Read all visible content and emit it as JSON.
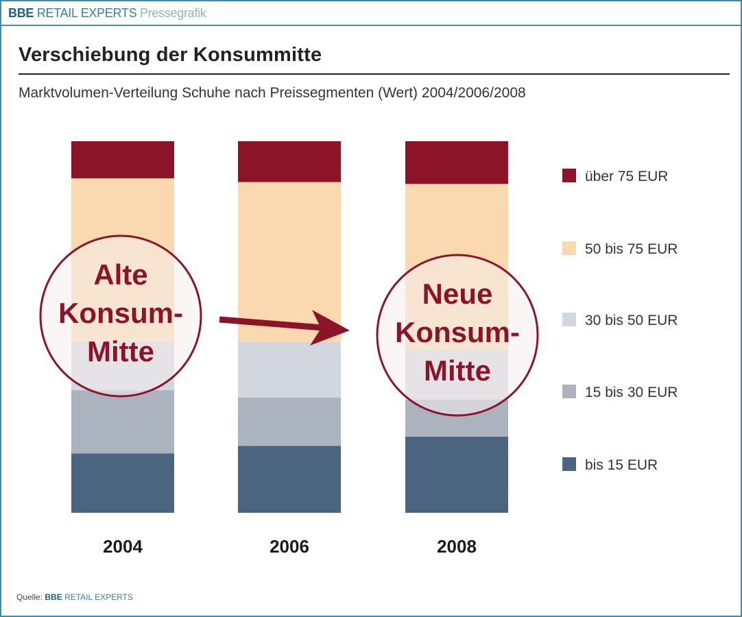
{
  "header": {
    "brand_bold": "BBE",
    "brand_name": "RETAIL EXPERTS",
    "brand_suffix": "Pressegrafik"
  },
  "footer": {
    "source_label": "Quelle:",
    "source_bold": "BBE",
    "source_name": "RETAIL EXPERTS"
  },
  "annotations": {
    "old_center": [
      "Alte",
      "Konsum-",
      "Mitte"
    ],
    "new_center": [
      "Neue",
      "Konsum-",
      "Mitte"
    ],
    "accent_color": "#8b1428"
  },
  "chart_data": {
    "type": "bar",
    "stacked": true,
    "title": "Verschiebung der Konsummitte",
    "subtitle": "Marktvolumen-Verteilung Schuhe nach Preissegmenten (Wert) 2004/2006/2008",
    "xlabel": "",
    "ylabel": "",
    "unit": "percent of market value (estimated)",
    "ylim": [
      0,
      100
    ],
    "grid": false,
    "legend_position": "right",
    "categories": [
      "2004",
      "2006",
      "2008"
    ],
    "series": [
      {
        "name": "bis 15 EUR",
        "color": "#4b6480",
        "values": [
          16,
          18,
          20.5
        ]
      },
      {
        "name": "15 bis 30 EUR",
        "color": "#abb3be",
        "values": [
          17,
          13,
          10
        ]
      },
      {
        "name": "30 bis 50 EUR",
        "color": "#d2d6de",
        "values": [
          13,
          15,
          13.5
        ]
      },
      {
        "name": "50 bis 75 EUR",
        "color": "#fbd9b0",
        "values": [
          44,
          43,
          44.5
        ]
      },
      {
        "name": "über 75 EUR",
        "color": "#8b1428",
        "values": [
          10,
          11,
          11.5
        ]
      }
    ],
    "legend_order": [
      "über 75 EUR",
      "50 bis 75 EUR",
      "30 bis 50 EUR",
      "15 bis 30 EUR",
      "bis 15 EUR"
    ]
  }
}
